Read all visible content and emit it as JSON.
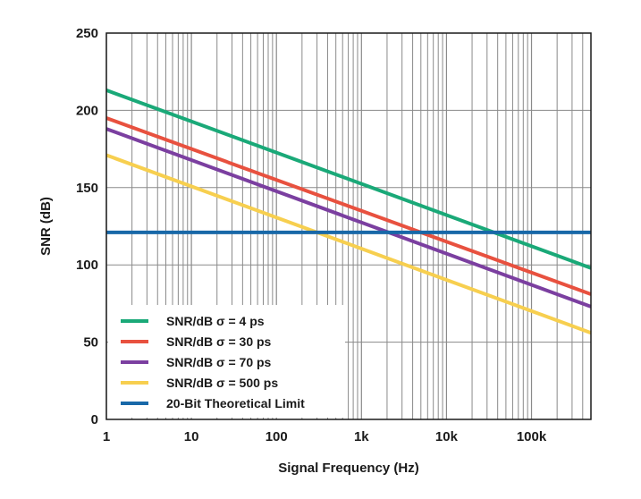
{
  "chart_data": {
    "type": "line",
    "title": "",
    "xlabel": "Signal Frequency (Hz)",
    "ylabel": "SNR (dB)",
    "xscale": "log",
    "xlim": [
      1,
      500000
    ],
    "ylim": [
      0,
      250
    ],
    "x_ticks": [
      1,
      10,
      100,
      1000,
      10000,
      100000
    ],
    "x_tick_labels": [
      "1",
      "10",
      "100",
      "1k",
      "10k",
      "100k"
    ],
    "y_ticks": [
      0,
      50,
      100,
      150,
      200,
      250
    ],
    "y_tick_labels": [
      "0",
      "50",
      "100",
      "150",
      "200",
      "250"
    ],
    "grid": true,
    "legend_position": "bottom-left",
    "series": [
      {
        "name": "SNR/dB σ = 4 ps",
        "color": "#1aa978",
        "x": [
          1,
          500000
        ],
        "values": [
          213,
          98
        ]
      },
      {
        "name": "SNR/dB σ = 30 ps",
        "color": "#e8513f",
        "x": [
          1,
          500000
        ],
        "values": [
          195,
          81
        ]
      },
      {
        "name": "SNR/dB σ = 70 ps",
        "color": "#7b3fa0",
        "x": [
          1,
          500000
        ],
        "values": [
          188,
          73
        ]
      },
      {
        "name": "SNR/dB σ = 500 ps",
        "color": "#f7cf4f",
        "x": [
          1,
          500000
        ],
        "values": [
          171,
          56
        ]
      },
      {
        "name": "20-Bit Theoretical Limit",
        "color": "#1868a8",
        "x": [
          1,
          500000
        ],
        "values": [
          121,
          121
        ]
      }
    ]
  }
}
